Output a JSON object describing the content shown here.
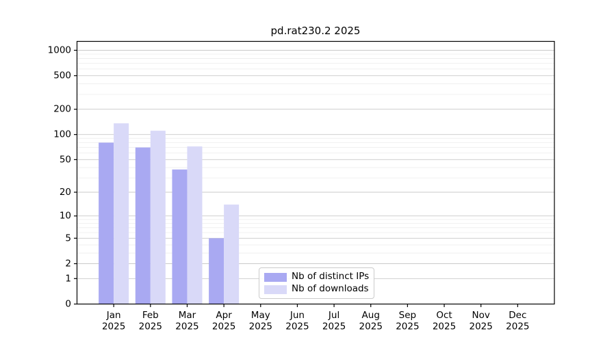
{
  "page": {
    "background": "#ffffff"
  },
  "chart_data": {
    "type": "bar",
    "title": "pd.rat230.2 2025",
    "categories": [
      "Jan 2025",
      "Feb 2025",
      "Mar 2025",
      "Apr 2025",
      "May 2025",
      "Jun 2025",
      "Jul 2025",
      "Aug 2025",
      "Sep 2025",
      "Oct 2025",
      "Nov 2025",
      "Dec 2025"
    ],
    "series": [
      {
        "name": "Nb of distinct IPs",
        "color": "#a9a9f2",
        "values": [
          80,
          70,
          38,
          5,
          0,
          0,
          0,
          0,
          0,
          0,
          0,
          0
        ]
      },
      {
        "name": "Nb of downloads",
        "color": "#d9d9f8",
        "values": [
          136,
          111,
          72,
          14,
          0,
          0,
          0,
          0,
          0,
          0,
          0,
          0
        ]
      }
    ],
    "xlabel": "",
    "ylabel": "",
    "yscale": "log1p",
    "yticks": [
      0,
      1,
      2,
      5,
      10,
      20,
      50,
      100,
      200,
      500,
      1000
    ],
    "minor_yticks": [
      3,
      4,
      6,
      7,
      8,
      9,
      30,
      40,
      60,
      70,
      80,
      90,
      300,
      400,
      600,
      700,
      800,
      900
    ],
    "ylim": [
      0,
      1274
    ],
    "grid": {
      "major_color": "#c9c9c9",
      "minor_color": "#ececec",
      "vertical": false
    },
    "legend_position": "lower center",
    "axis_color": "#000000"
  }
}
